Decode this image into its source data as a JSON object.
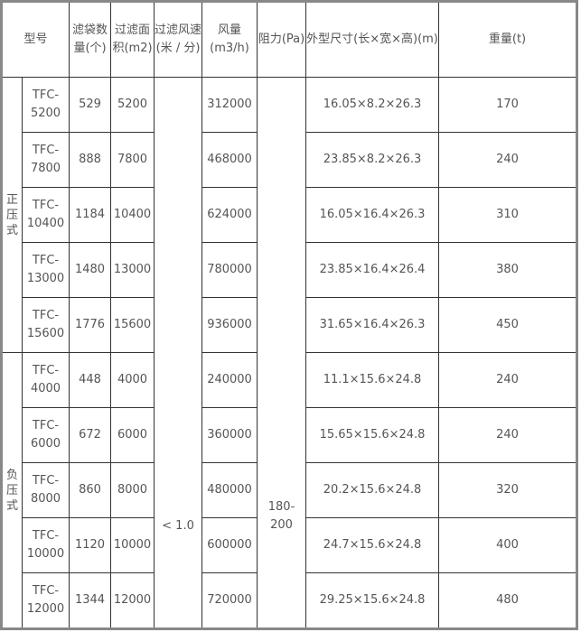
{
  "headers": {
    "model": "型号",
    "bags": "滤袋数量(个)",
    "area": "过滤面积(m2)",
    "speed": "过滤风速(米 / 分)",
    "flow": "风量(m3/h)",
    "resistance": "阻力(Pa)",
    "dimensions": "外型尺寸(长×宽×高)(m)",
    "weight": "重量(t)"
  },
  "groups": [
    {
      "label": "正压式",
      "rows": [
        {
          "model": "TFC-5200",
          "bags": "529",
          "area": "5200",
          "flow": "312000",
          "dimensions": "16.05×8.2×26.3",
          "weight": "170"
        },
        {
          "model": "TFC-7800",
          "bags": "888",
          "area": "7800",
          "flow": "468000",
          "dimensions": "23.85×8.2×26.3",
          "weight": "240"
        },
        {
          "model": "TFC-10400",
          "bags": "1184",
          "area": "10400",
          "flow": "624000",
          "dimensions": "16.05×16.4×26.3",
          "weight": "310"
        },
        {
          "model": "TFC-13000",
          "bags": "1480",
          "area": "13000",
          "flow": "780000",
          "dimensions": "23.85×16.4×26.4",
          "weight": "380"
        },
        {
          "model": "TFC-15600",
          "bags": "1776",
          "area": "15600",
          "flow": "936000",
          "dimensions": "31.65×16.4×26.3",
          "weight": "450"
        }
      ]
    },
    {
      "label": "负压式",
      "rows": [
        {
          "model": "TFC-4000",
          "bags": "448",
          "area": "4000",
          "flow": "240000",
          "dimensions": "11.1×15.6×24.8",
          "weight": "240"
        },
        {
          "model": "TFC-6000",
          "bags": "672",
          "area": "6000",
          "flow": "360000",
          "dimensions": "15.65×15.6×24.8",
          "weight": "240"
        },
        {
          "model": "TFC-8000",
          "bags": "860",
          "area": "8000",
          "flow": "480000",
          "dimensions": "20.2×15.6×24.8",
          "weight": "320"
        },
        {
          "model": "TFC-10000",
          "bags": "1120",
          "area": "10000",
          "flow": "600000",
          "dimensions": "24.7×15.6×24.8",
          "weight": "400"
        },
        {
          "model": "TFC-12000",
          "bags": "1344",
          "area": "12000",
          "flow": "720000",
          "dimensions": "29.25×15.6×24.8",
          "weight": "480"
        }
      ]
    }
  ],
  "shared": {
    "speed": "< 1.0",
    "resistance": "180-200"
  }
}
